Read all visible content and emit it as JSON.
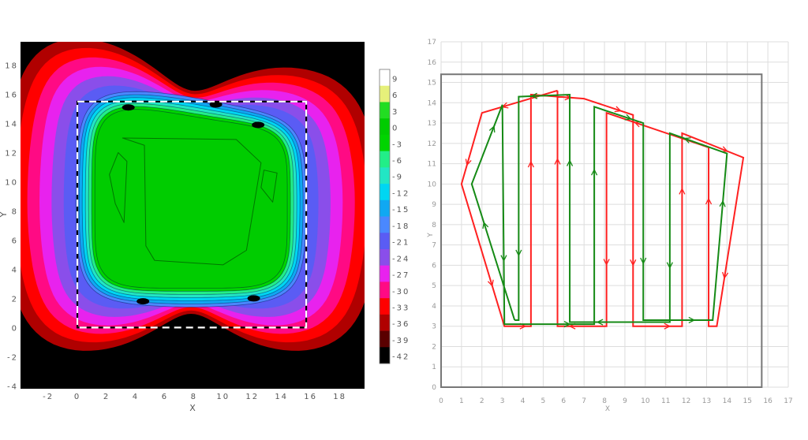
{
  "chart_data": [
    {
      "type": "heatmap",
      "subtype": "filled-contour",
      "title": "",
      "xlabel": "X",
      "ylabel": "Y",
      "xlim": [
        -3.9,
        19.7
      ],
      "ylim": [
        -4.2,
        19.6
      ],
      "xticks": [
        "-2",
        "0",
        "2",
        "4",
        "6",
        "8",
        "10",
        "12",
        "14",
        "16",
        "18"
      ],
      "yticks": [
        "-4",
        "-2",
        "0",
        "2",
        "4",
        "6",
        "8",
        "10",
        "12",
        "14",
        "16",
        "18"
      ],
      "region_rectangle": {
        "x": [
          0,
          15.7
        ],
        "y": [
          0,
          15.5
        ],
        "style": "dashed black/white"
      },
      "colorbar": {
        "labels": [
          "9",
          "6",
          "3",
          "0",
          "-3",
          "-6",
          "-9",
          "-12",
          "-15",
          "-18",
          "-21",
          "-24",
          "-27",
          "-30",
          "-33",
          "-36",
          "-39",
          "-42"
        ],
        "colors": [
          "#ffffff",
          "#e6f07a",
          "#22dd22",
          "#00cc00",
          "#00d400",
          "#22ee88",
          "#22e6c4",
          "#00d6f2",
          "#10a8f2",
          "#4a88ff",
          "#5a5cf4",
          "#8a4eea",
          "#e822ee",
          "#ff0a84",
          "#ff0000",
          "#b00000",
          "#5a0000",
          "#000000"
        ]
      },
      "levels": [
        -39,
        -36,
        -33,
        -30,
        -27,
        -24,
        -21,
        -18,
        -15,
        -12,
        -9,
        -6,
        -3
      ],
      "description_of_field": "plateau near 0..3 inside region, falling to -42 outside; two lobes left/right"
    },
    {
      "type": "line",
      "title": "",
      "xlabel": "X",
      "ylabel": "Y",
      "xlim": [
        0,
        17
      ],
      "ylim": [
        0,
        17
      ],
      "grid": true,
      "xticks": [
        "0",
        "1",
        "2",
        "3",
        "4",
        "5",
        "6",
        "7",
        "8",
        "9",
        "10",
        "11",
        "12",
        "13",
        "14",
        "15",
        "16",
        "17"
      ],
      "yticks": [
        "0",
        "1",
        "2",
        "3",
        "4",
        "5",
        "6",
        "7",
        "8",
        "9",
        "10",
        "11",
        "12",
        "13",
        "14",
        "15",
        "16",
        "17"
      ],
      "boundary_rectangle": {
        "x": [
          0,
          15.7
        ],
        "y": [
          0,
          15.4
        ]
      },
      "series": [
        {
          "name": "red path",
          "color": "#ff2020",
          "x": [
            5.7,
            2,
            1,
            3.1,
            4.4,
            4.4,
            7,
            9.4,
            9.4,
            11.8,
            11.8,
            14.8,
            13.5,
            13.1,
            13.1,
            8.1,
            8.1,
            5.7,
            5.7
          ],
          "y": [
            14.6,
            13.5,
            10,
            3,
            3,
            14.4,
            14.2,
            13.4,
            3,
            3,
            12.5,
            11.3,
            3,
            3,
            11.8,
            13.5,
            3,
            3,
            14.6
          ]
        },
        {
          "name": "green path",
          "color": "#158a15",
          "x": [
            3.6,
            1.5,
            3,
            3.1,
            7.5,
            7.5,
            9.9,
            9.9,
            13.3,
            14,
            11.2,
            11.2,
            6.3,
            6.3,
            3.8,
            3.8,
            3.6
          ],
          "y": [
            3.3,
            10,
            13.9,
            3.1,
            3.1,
            13.8,
            13,
            3.3,
            3.3,
            11.5,
            12.5,
            3.2,
            3.2,
            14.4,
            14.3,
            3.3,
            3.3
          ]
        }
      ]
    }
  ]
}
